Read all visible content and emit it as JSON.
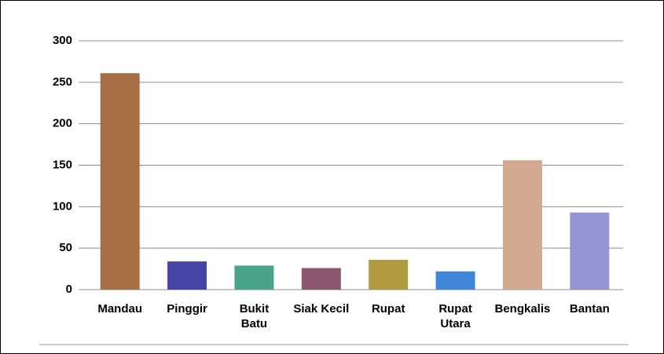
{
  "chart_data": {
    "type": "bar",
    "categories": [
      "Mandau",
      "Pinggir",
      "Bukit\nBatu",
      "Siak Kecil",
      "Rupat",
      "Rupat\nUtara",
      "Bengkalis",
      "Bantan"
    ],
    "values": [
      261,
      34,
      29,
      26,
      36,
      22,
      156,
      93
    ],
    "colors": [
      "#a86f45",
      "#4545a8",
      "#4aa48a",
      "#8b566e",
      "#b09a42",
      "#3f86d8",
      "#d1a890",
      "#9595d5"
    ],
    "ylim": [
      0,
      300
    ],
    "yticks": [
      0,
      50,
      100,
      150,
      200,
      250,
      300
    ],
    "grid": true
  }
}
